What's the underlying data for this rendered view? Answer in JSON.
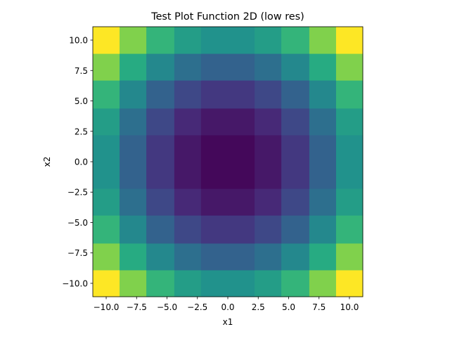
{
  "chart_data": {
    "type": "heatmap",
    "title": "Test Plot Function 2D (low res)",
    "xlabel": "x1",
    "ylabel": "x2",
    "xlim": [
      -11.1,
      11.1
    ],
    "ylim": [
      -11.1,
      11.1
    ],
    "xticks": [
      -10.0,
      -7.5,
      -5.0,
      -2.5,
      0.0,
      2.5,
      5.0,
      7.5,
      10.0
    ],
    "yticks": [
      -10.0,
      -7.5,
      -5.0,
      -2.5,
      0.0,
      2.5,
      5.0,
      7.5,
      10.0
    ],
    "xtick_labels": [
      "−10.0",
      "−7.5",
      "−5.0",
      "−2.5",
      "0.0",
      "2.5",
      "5.0",
      "7.5",
      "10.0"
    ],
    "ytick_labels": [
      "−10.0",
      "−7.5",
      "−5.0",
      "−2.5",
      "0.0",
      "2.5",
      "5.0",
      "7.5",
      "10.0"
    ],
    "colormap": "viridis",
    "grid": false,
    "x_edges": [
      -11.1,
      -8.9,
      -6.7,
      -4.4,
      -2.2,
      0.0,
      2.2,
      4.4,
      6.7,
      8.9,
      11.1
    ],
    "y_edges": [
      -11.1,
      -8.9,
      -6.7,
      -4.4,
      -2.2,
      0.0,
      2.2,
      4.4,
      6.7,
      8.9,
      11.1
    ],
    "values": [
      [
        1.0,
        0.81,
        0.66,
        0.56,
        0.51,
        0.51,
        0.56,
        0.66,
        0.81,
        1.0
      ],
      [
        0.81,
        0.62,
        0.47,
        0.37,
        0.32,
        0.32,
        0.37,
        0.47,
        0.62,
        0.81
      ],
      [
        0.66,
        0.47,
        0.32,
        0.22,
        0.17,
        0.17,
        0.22,
        0.32,
        0.47,
        0.66
      ],
      [
        0.56,
        0.37,
        0.22,
        0.12,
        0.07,
        0.07,
        0.12,
        0.22,
        0.37,
        0.56
      ],
      [
        0.51,
        0.32,
        0.17,
        0.07,
        0.02,
        0.02,
        0.07,
        0.17,
        0.32,
        0.51
      ],
      [
        0.51,
        0.32,
        0.17,
        0.07,
        0.02,
        0.02,
        0.07,
        0.17,
        0.32,
        0.51
      ],
      [
        0.56,
        0.37,
        0.22,
        0.12,
        0.07,
        0.07,
        0.12,
        0.22,
        0.37,
        0.56
      ],
      [
        0.66,
        0.47,
        0.32,
        0.22,
        0.17,
        0.17,
        0.22,
        0.32,
        0.47,
        0.66
      ],
      [
        0.81,
        0.62,
        0.47,
        0.37,
        0.32,
        0.32,
        0.37,
        0.47,
        0.62,
        0.81
      ],
      [
        1.0,
        0.81,
        0.66,
        0.56,
        0.51,
        0.51,
        0.56,
        0.66,
        0.81,
        1.0
      ]
    ]
  }
}
